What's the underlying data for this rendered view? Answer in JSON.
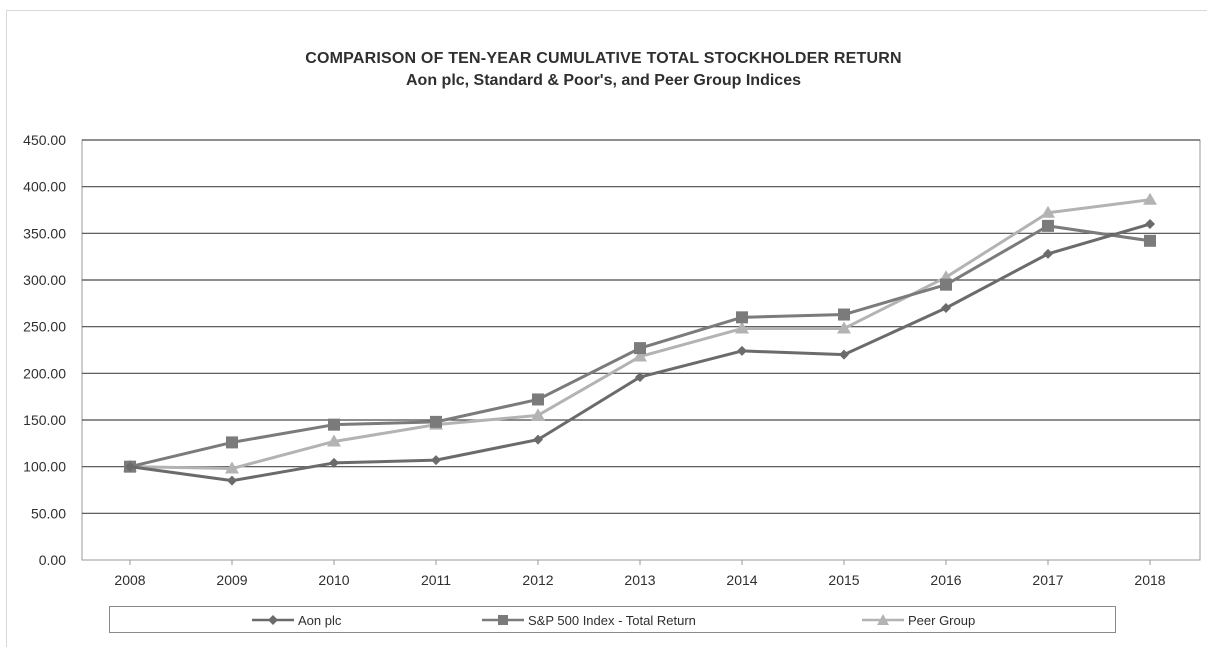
{
  "chart_data": {
    "type": "line",
    "title": "COMPARISON OF TEN-YEAR CUMULATIVE TOTAL STOCKHOLDER RETURN",
    "subtitle": "Aon plc, Standard & Poor's, and Peer Group Indices",
    "xlabel": "",
    "ylabel": "",
    "categories": [
      "2008",
      "2009",
      "2010",
      "2011",
      "2012",
      "2013",
      "2014",
      "2015",
      "2016",
      "2017",
      "2018"
    ],
    "yticks": [
      "0.00",
      "50.00",
      "100.00",
      "150.00",
      "200.00",
      "250.00",
      "300.00",
      "350.00",
      "400.00",
      "450.00"
    ],
    "ylim": [
      0,
      450
    ],
    "grid": true,
    "legend_position": "bottom",
    "series": [
      {
        "name": "Aon plc",
        "marker": "diamond",
        "color": "#6b6b6b",
        "values": [
          100,
          85,
          104,
          107,
          129,
          196,
          224,
          220,
          270,
          328,
          360
        ]
      },
      {
        "name": "S&P 500 Index - Total Return",
        "marker": "square",
        "color": "#7b7b7b",
        "values": [
          100,
          126,
          145,
          148,
          172,
          227,
          260,
          263,
          295,
          358,
          342
        ]
      },
      {
        "name": "Peer Group",
        "marker": "triangle",
        "color": "#b3b3b3",
        "values": [
          100,
          98,
          127,
          145,
          155,
          218,
          248,
          248,
          303,
          372,
          386
        ]
      }
    ]
  }
}
